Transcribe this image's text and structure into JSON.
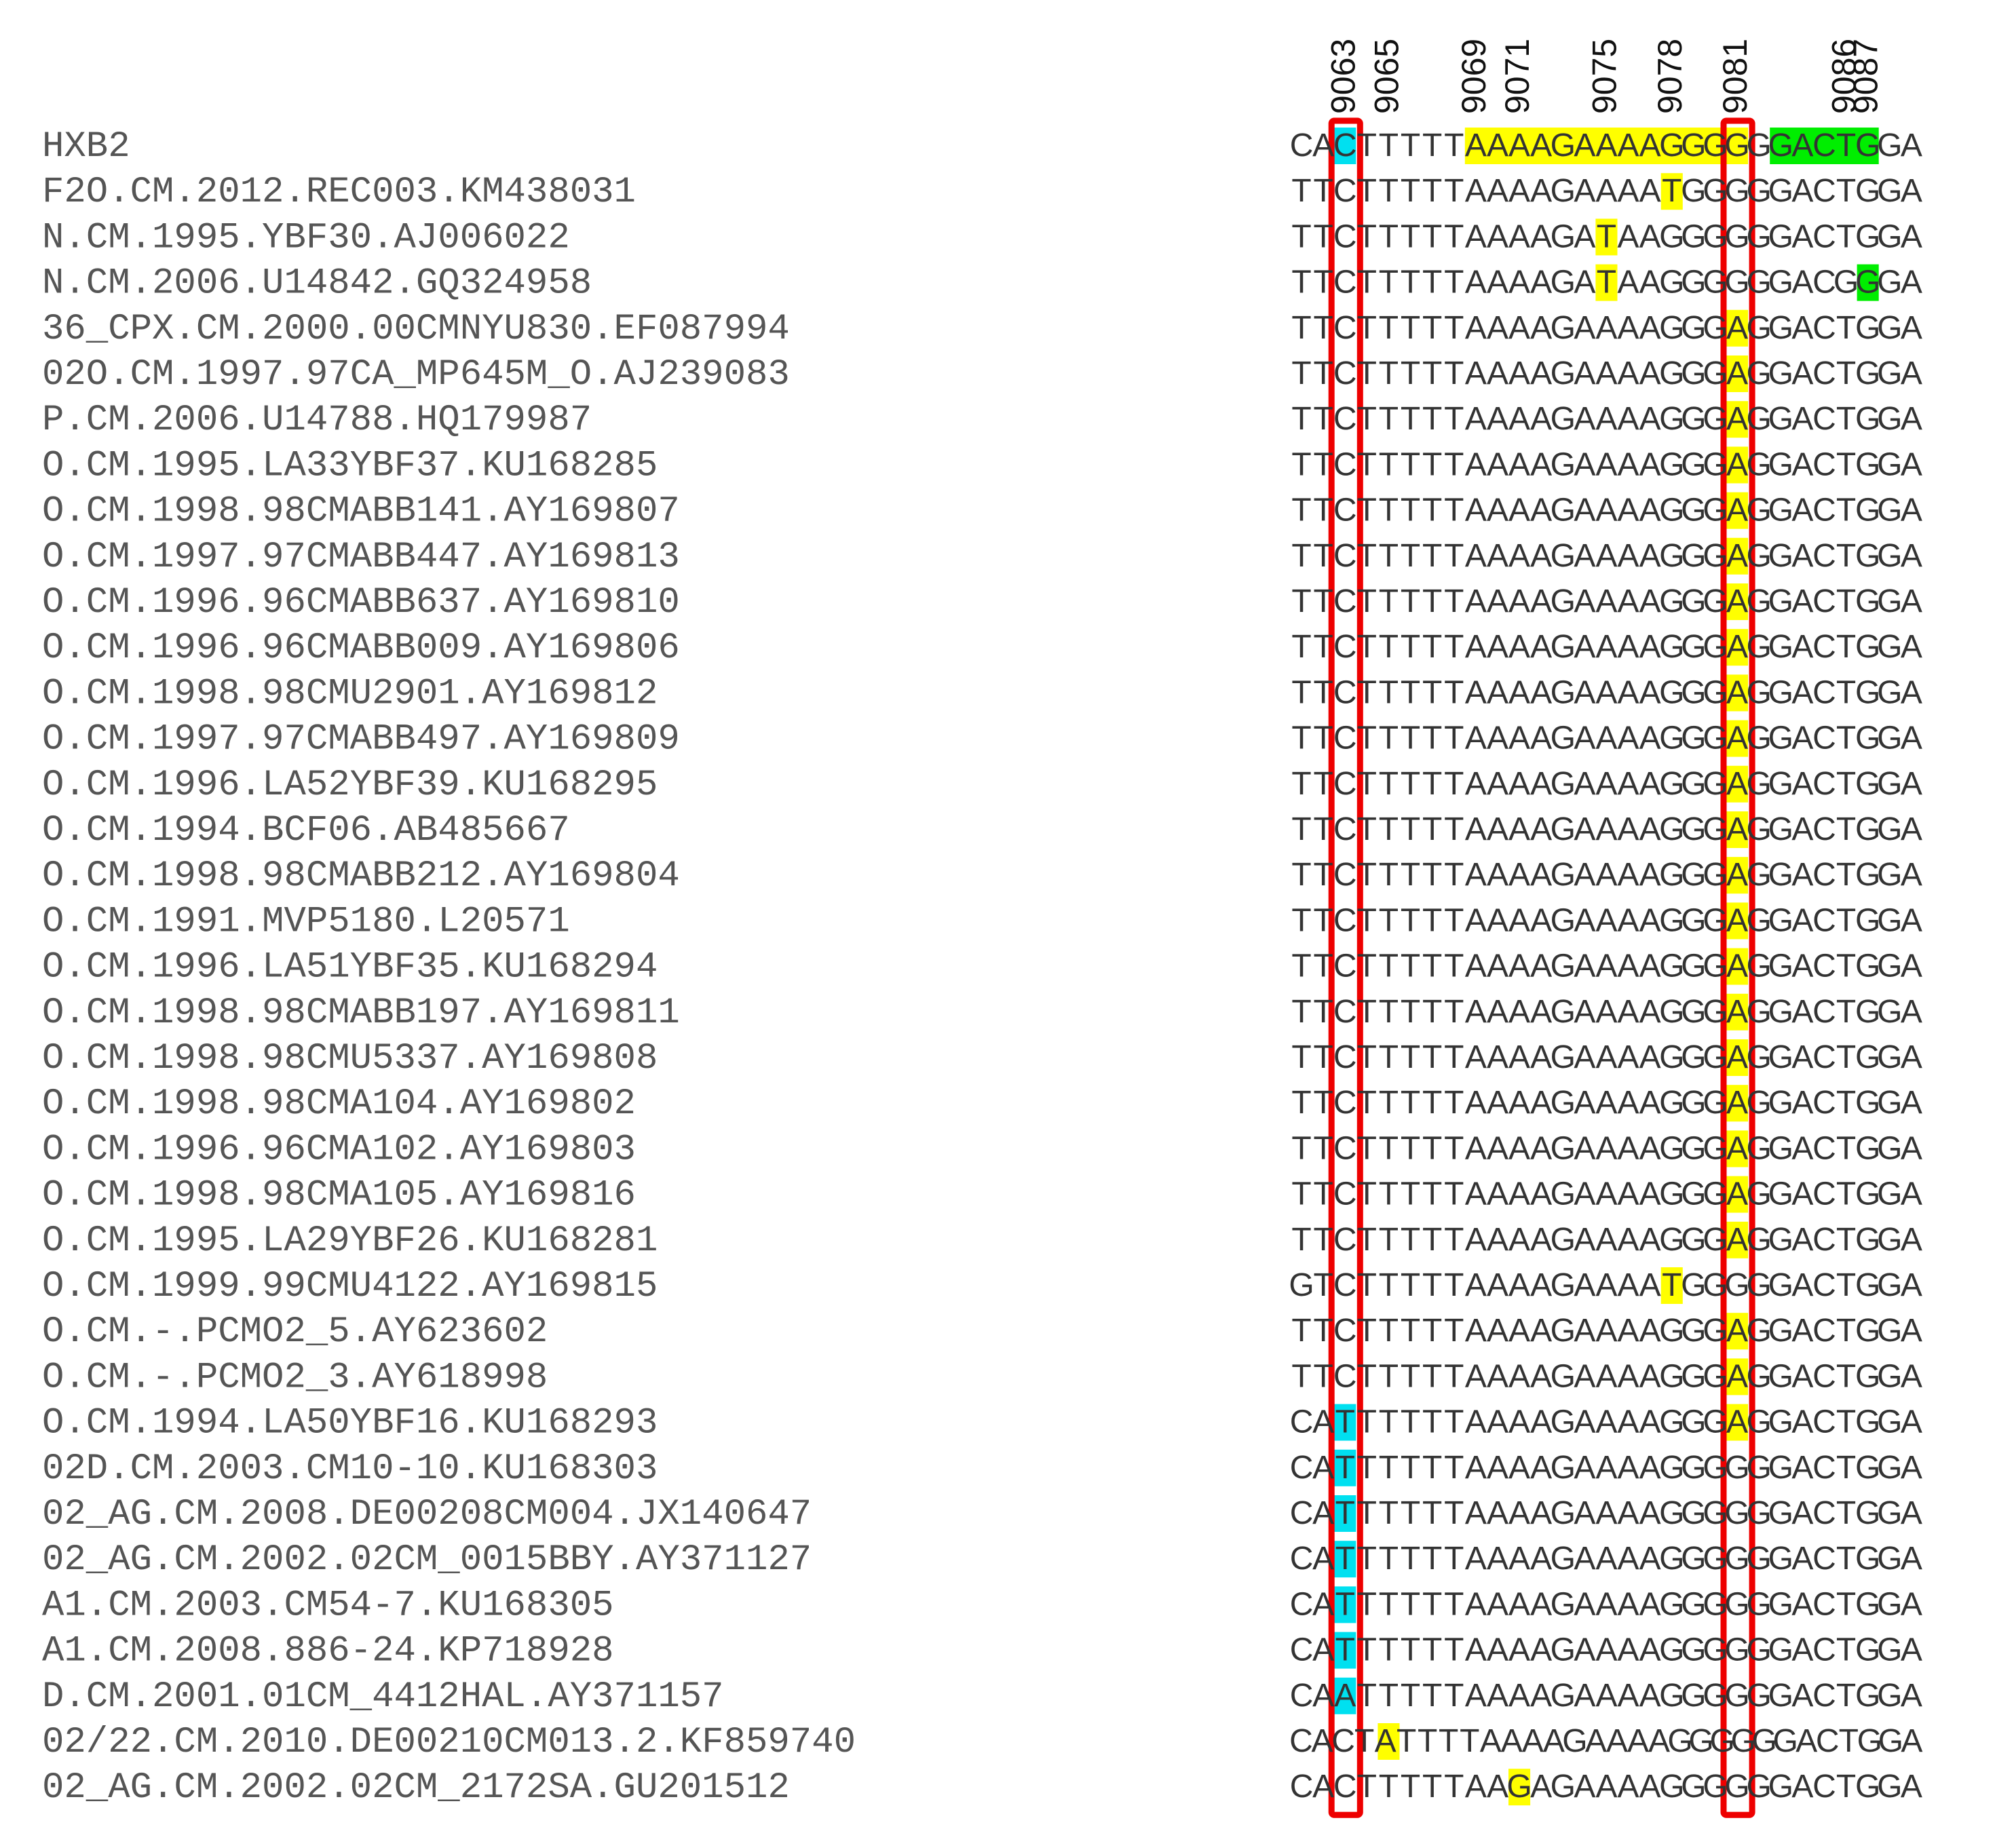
{
  "positions": [
    "9063",
    "9065",
    "9069",
    "9071",
    "9075",
    "9078",
    "9081",
    "9086",
    "9087"
  ],
  "colors": {
    "yellow": "#ffff00",
    "green": "#00ee00",
    "cyan": "#00e0f0",
    "box": "#ee0000"
  },
  "sequences": [
    {
      "label": "HXB2",
      "seq": "CACTTTTTAAAAGAAAAGGGGGGACTGGA"
    },
    {
      "label": "F2O.CM.2012.REC003.KM438031",
      "seq": "TTCTTTTTAAAAGAAAATGGGGGACTGGA"
    },
    {
      "label": "N.CM.1995.YBF30.AJ006022",
      "seq": "TTCTTTTTAAAAGATAAGGGGGGACTGGA"
    },
    {
      "label": "N.CM.2006.U14842.GQ324958",
      "seq": "TTCTTTTTAAAAGATAAGGGGGGACGGGA"
    },
    {
      "label": "36_CPX.CM.2000.00CMNYU830.EF087994",
      "seq": "TTCTTTTTAAAAGAAAAGGGAGGACTGGA"
    },
    {
      "label": "02O.CM.1997.97CA_MP645M_O.AJ239083",
      "seq": "TTCTTTTTAAAAGAAAAGGGAGGACTGGA"
    },
    {
      "label": "P.CM.2006.U14788.HQ179987",
      "seq": "TTCTTTTTAAAAGAAAAGGGAGGACTGGA"
    },
    {
      "label": "O.CM.1995.LA33YBF37.KU168285",
      "seq": "TTCTTTTTAAAAGAAAAGGGAGGACTGGA"
    },
    {
      "label": "O.CM.1998.98CMABB141.AY169807",
      "seq": "TTCTTTTTAAAAGAAAAGGGAGGACTGGA"
    },
    {
      "label": "O.CM.1997.97CMABB447.AY169813",
      "seq": "TTCTTTTTAAAAGAAAAGGGAGGACTGGA"
    },
    {
      "label": "O.CM.1996.96CMABB637.AY169810",
      "seq": "TTCTTTTTAAAAGAAAAGGGAGGACTGGA"
    },
    {
      "label": "O.CM.1996.96CMABB009.AY169806",
      "seq": "TTCTTTTTAAAAGAAAAGGGAGGACTGGA"
    },
    {
      "label": "O.CM.1998.98CMU2901.AY169812",
      "seq": "TTCTTTTTAAAAGAAAAGGGAGGACTGGA"
    },
    {
      "label": "O.CM.1997.97CMABB497.AY169809",
      "seq": "TTCTTTTTAAAAGAAAAGGGAGGACTGGA"
    },
    {
      "label": "O.CM.1996.LA52YBF39.KU168295",
      "seq": "TTCTTTTTAAAAGAAAAGGGAGGACTGGA"
    },
    {
      "label": "O.CM.1994.BCF06.AB485667",
      "seq": "TTCTTTTTAAAAGAAAAGGGAGGACTGGA"
    },
    {
      "label": "O.CM.1998.98CMABB212.AY169804",
      "seq": "TTCTTTTTAAAAGAAAAGGGAGGACTGGA"
    },
    {
      "label": "O.CM.1991.MVP5180.L20571",
      "seq": "TTCTTTTTAAAAGAAAAGGGAGGACTGGA"
    },
    {
      "label": "O.CM.1996.LA51YBF35.KU168294",
      "seq": "TTCTTTTTAAAAGAAAAGGGAGGACTGGA"
    },
    {
      "label": "O.CM.1998.98CMABB197.AY169811",
      "seq": "TTCTTTTTAAAAGAAAAGGGAGGACTGGA"
    },
    {
      "label": "O.CM.1998.98CMU5337.AY169808",
      "seq": "TTCTTTTTAAAAGAAAAGGGAGGACTGGA"
    },
    {
      "label": "O.CM.1998.98CMA104.AY169802",
      "seq": "TTCTTTTTAAAAGAAAAGGGAGGACTGGA"
    },
    {
      "label": "O.CM.1996.96CMA102.AY169803",
      "seq": "TTCTTTTTAAAAGAAAAGGGAGGACTGGA"
    },
    {
      "label": "O.CM.1998.98CMA105.AY169816",
      "seq": "TTCTTTTTAAAAGAAAAGGGAGGACTGGA"
    },
    {
      "label": "O.CM.1995.LA29YBF26.KU168281",
      "seq": "TTCTTTTTAAAAGAAAAGGGAGGACTGGA"
    },
    {
      "label": "O.CM.1999.99CMU4122.AY169815",
      "seq": "GTCTTTTTAAAAGAAAATGGGGGACTGGA"
    },
    {
      "label": "O.CM.-.PCMO2_5.AY623602",
      "seq": "TTCTTTTTAAAAGAAAAGGGAGGACTGGA"
    },
    {
      "label": "O.CM.-.PCMO2_3.AY618998",
      "seq": "TTCTTTTTAAAAGAAAAGGGAGGACTGGA"
    },
    {
      "label": "O.CM.1994.LA50YBF16.KU168293",
      "seq": "CATTTTTTAAAAGAAAAGGGAGGACTGGA"
    },
    {
      "label": "02D.CM.2003.CM10-10.KU168303",
      "seq": "CATTTTTTAAAAGAAAAGGGGGGACTGGA"
    },
    {
      "label": "02_AG.CM.2008.DE00208CM004.JX140647",
      "seq": "CATTTTTTAAAAGAAAAGGGGGGACTGGA"
    },
    {
      "label": "02_AG.CM.2002.02CM_0015BBY.AY371127",
      "seq": "CATTTTTTAAAAGAAAAGGGGGGACTGGA"
    },
    {
      "label": "A1.CM.2003.CM54-7.KU168305",
      "seq": "CATTTTTTAAAAGAAAAGGGGGGACTGGA"
    },
    {
      "label": "A1.CM.2008.886-24.KP718928",
      "seq": "CATTTTTTAAAAGAAAAGGGGGGACTGGA"
    },
    {
      "label": "D.CM.2001.01CM_4412HAL.AY371157",
      "seq": "CAATTTTTAAAAGAAAAGGGGGGACTGGA"
    },
    {
      "label": "02/22.CM.2010.DE00210CM013.2.KF859740",
      "seq": "CACTATTTTAAAAGAAAAGGGGGGACTGGA"
    },
    {
      "label": "02_AG.CM.2002.02CM_2172SA.GU201512",
      "seq": "CACTTTTTAAGAGAAAAGGGGGGACTGGA"
    }
  ]
}
